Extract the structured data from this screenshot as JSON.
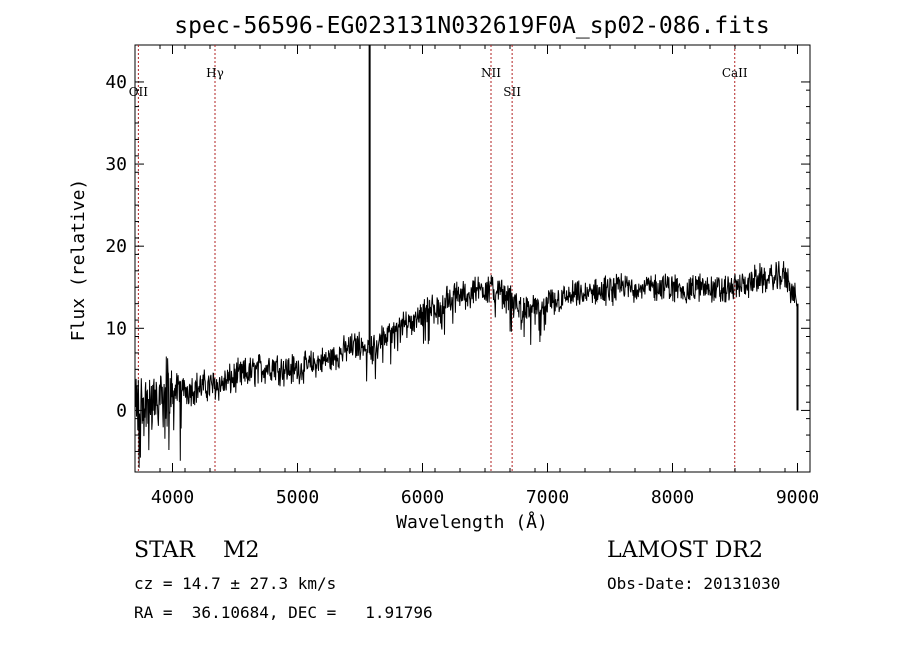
{
  "chart_data": {
    "type": "line",
    "title": "spec-56596-EG023131N032619F0A_sp02-086.fits",
    "xlabel": "Wavelength (Å)",
    "ylabel": "Flux (relative)",
    "xlim": [
      3700,
      9100
    ],
    "ylim": [
      -7.5,
      44.5
    ],
    "x_ticks": [
      4000,
      5000,
      6000,
      7000,
      8000,
      9000
    ],
    "y_ticks": [
      0,
      10,
      20,
      30,
      40
    ],
    "grid": false,
    "line_color": "#000000",
    "marker_color": "#b22222",
    "series": [
      {
        "x": [
          3700,
          3750,
          3800,
          3900,
          4000,
          4100,
          4200,
          4300,
          4400,
          4500,
          4600,
          4700,
          4800,
          4900,
          5000,
          5100,
          5200,
          5300,
          5400,
          5500,
          5600,
          5700,
          5800,
          5900,
          6000,
          6100,
          6200,
          6300,
          6400,
          6500,
          6600,
          6700,
          6800,
          6900,
          7000,
          7100,
          7200,
          7300,
          7400,
          7500,
          7600,
          7700,
          7800,
          7900,
          8000,
          8100,
          8200,
          8300,
          8400,
          8500,
          8600,
          8700,
          8800,
          8900,
          9000
        ],
        "y": [
          0,
          0.5,
          1,
          2,
          2.5,
          2.5,
          2.8,
          3,
          3.2,
          4,
          4.5,
          5,
          5.5,
          5,
          5,
          5.5,
          6,
          6.5,
          7.5,
          8,
          7.5,
          9,
          9.5,
          11,
          12,
          12.5,
          13.5,
          14,
          14.5,
          15,
          14.5,
          13.5,
          12.5,
          12,
          13,
          13.5,
          14,
          14,
          14.5,
          14.5,
          15,
          15,
          15,
          15,
          15,
          14.5,
          15,
          15,
          14.5,
          15,
          15.5,
          16,
          16,
          16.5,
          13
        ]
      }
    ],
    "spikes": [
      {
        "x": 5577,
        "y_from": 7,
        "y_to": 44.5
      },
      {
        "x": 9000,
        "y_from": 0,
        "y_to": 13
      }
    ],
    "lines": [
      {
        "label": "OII",
        "x": 3727,
        "level": "low"
      },
      {
        "label": "Hγ",
        "x": 4340,
        "level": "high"
      },
      {
        "label": "NII",
        "x": 6548,
        "level": "high"
      },
      {
        "label": "SII",
        "x": 6717,
        "level": "low"
      },
      {
        "label": "CaII",
        "x": 8498,
        "level": "high"
      }
    ]
  },
  "info": {
    "object_type": "STAR    M2",
    "survey": "LAMOST DR2",
    "cz": "cz = 14.7 ± 27.3 km/s",
    "obs_date": "Obs-Date: 20131030",
    "radec": "RA =  36.10684, DEC =   1.91796"
  }
}
